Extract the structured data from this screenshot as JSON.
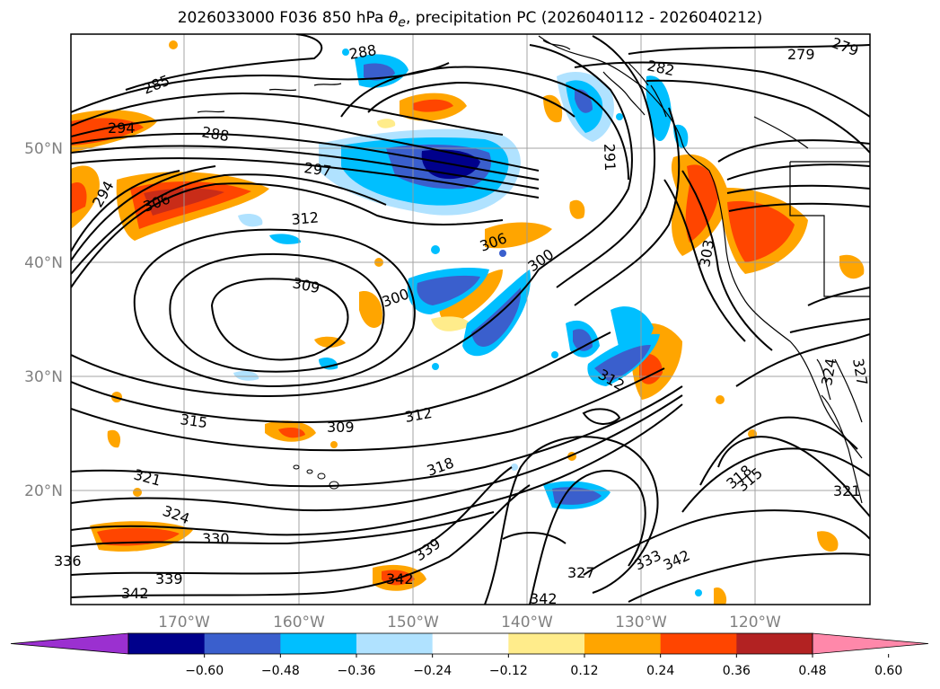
{
  "title_prefix": "2026033000 F036 850 hPa ",
  "title_symbol": "θ",
  "title_subscript": "e",
  "title_suffix": ", precipitation PC (2026040112 - 2026040212)",
  "lat_labels": [
    "50°N",
    "40°N",
    "30°N",
    "20°N"
  ],
  "lon_labels": [
    "170°W",
    "160°W",
    "150°W",
    "140°W",
    "130°W",
    "120°W"
  ],
  "contour_labels": [
    "279",
    "282",
    "285",
    "288",
    "291",
    "294",
    "297",
    "300",
    "303",
    "306",
    "309",
    "312",
    "315",
    "318",
    "321",
    "324",
    "327",
    "330",
    "333",
    "336",
    "339",
    "342"
  ],
  "colorbar": {
    "ticks": [
      "−0.60",
      "−0.48",
      "−0.36",
      "−0.24",
      "−0.12",
      "0.12",
      "0.24",
      "0.36",
      "0.48",
      "0.60"
    ],
    "colors": [
      "#9b30d0",
      "#00008b",
      "#3a5fcd",
      "#00bfff",
      "#b0e2ff",
      "#ffffff",
      "#ffec8b",
      "#ffa500",
      "#ff4500",
      "#b22222",
      "#ff88aa"
    ]
  },
  "colors": {
    "coastline": "#000000",
    "contour": "#000000",
    "grid": "#9a9a9a"
  }
}
